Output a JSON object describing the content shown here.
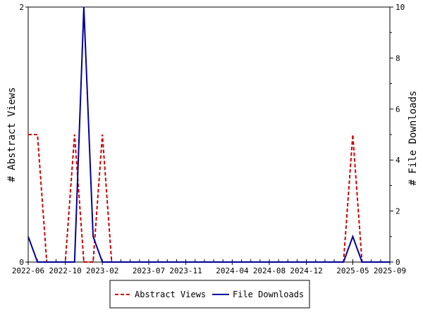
{
  "chart_data": {
    "type": "line",
    "ylabel_left": "# Abstract Views",
    "ylabel_right": "# File Downloads",
    "xlim": [
      "2022-06",
      "2025-09"
    ],
    "y_left_lim": [
      0,
      2
    ],
    "y_right_lim": [
      0,
      10
    ],
    "x_tick_labels": [
      "2022-06",
      "2022-10",
      "2023-02",
      "2023-07",
      "2023-11",
      "2024-04",
      "2024-08",
      "2024-12",
      "2025-05",
      "2025-09"
    ],
    "y_left_ticks": [
      0,
      2
    ],
    "y_right_ticks": [
      0,
      2,
      4,
      6,
      8,
      10
    ],
    "grid": false,
    "legend_position": "bottom",
    "series": [
      {
        "name": "Abstract Views",
        "axis": "left",
        "color": "#cc0000",
        "style": "dashed",
        "x": [
          "2022-06",
          "2022-07",
          "2022-08",
          "2022-09",
          "2022-10",
          "2022-11",
          "2022-12",
          "2023-01",
          "2023-02",
          "2023-03",
          "2023-04",
          "2025-04",
          "2025-05",
          "2025-06",
          "2025-07",
          "2025-08",
          "2025-09"
        ],
        "values": [
          1,
          1,
          0,
          0,
          0,
          1,
          0,
          0,
          1,
          0,
          0,
          0,
          1,
          0,
          0,
          0,
          0
        ]
      },
      {
        "name": "File Downloads",
        "axis": "right",
        "color": "#000099",
        "style": "solid",
        "x": [
          "2022-06",
          "2022-07",
          "2022-08",
          "2022-09",
          "2022-10",
          "2022-11",
          "2022-12",
          "2023-01",
          "2023-02",
          "2023-03",
          "2023-04",
          "2025-04",
          "2025-05",
          "2025-06",
          "2025-07",
          "2025-08",
          "2025-09"
        ],
        "values": [
          1,
          0,
          0,
          0,
          0,
          0,
          10,
          1,
          0,
          0,
          0,
          0,
          1,
          0,
          0,
          0,
          0
        ]
      }
    ]
  }
}
